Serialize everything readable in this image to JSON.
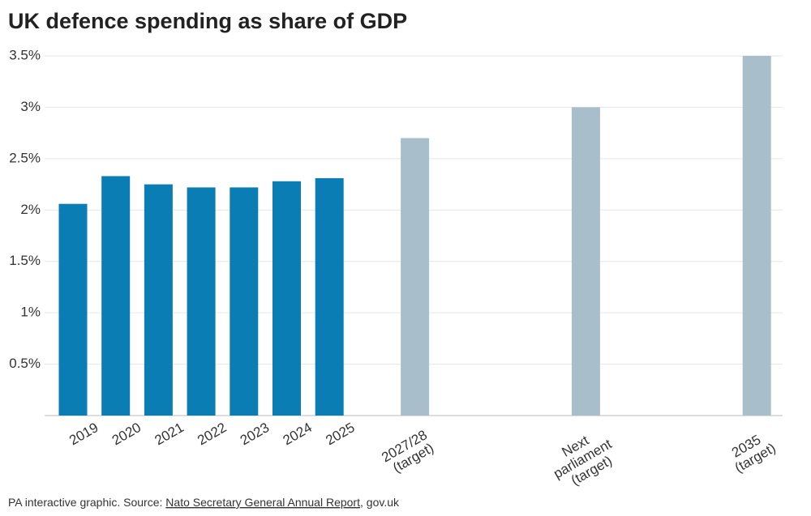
{
  "chart_data": {
    "type": "bar",
    "title": "UK defence spending as share of GDP",
    "categories": [
      "2019",
      "2020",
      "2021",
      "2022",
      "2023",
      "2024",
      "2025",
      "2027/28 (target)",
      "Next parliament (target)",
      "2035 (target)"
    ],
    "values": [
      2.06,
      2.33,
      2.25,
      2.22,
      2.22,
      2.28,
      2.31,
      2.7,
      3.0,
      3.5
    ],
    "bar_colors": [
      "#0a7db5",
      "#0a7db5",
      "#0a7db5",
      "#0a7db5",
      "#0a7db5",
      "#0a7db5",
      "#0a7db5",
      "#a8bfcb",
      "#a8bfcb",
      "#a8bfcb"
    ],
    "ylim": [
      0,
      3.5
    ],
    "yticks": [
      {
        "value": 0.5,
        "label": "0.5%"
      },
      {
        "value": 1,
        "label": "1%"
      },
      {
        "value": 1.5,
        "label": "1.5%"
      },
      {
        "value": 2,
        "label": "2%"
      },
      {
        "value": 2.5,
        "label": "2.5%"
      },
      {
        "value": 3,
        "label": "3%"
      },
      {
        "value": 3.5,
        "label": "3.5%"
      }
    ],
    "grid": true,
    "source": {
      "prefix": "PA interactive graphic. Source: ",
      "link": "Nato Secretary General Annual Report",
      "suffix": ", gov.uk"
    }
  }
}
